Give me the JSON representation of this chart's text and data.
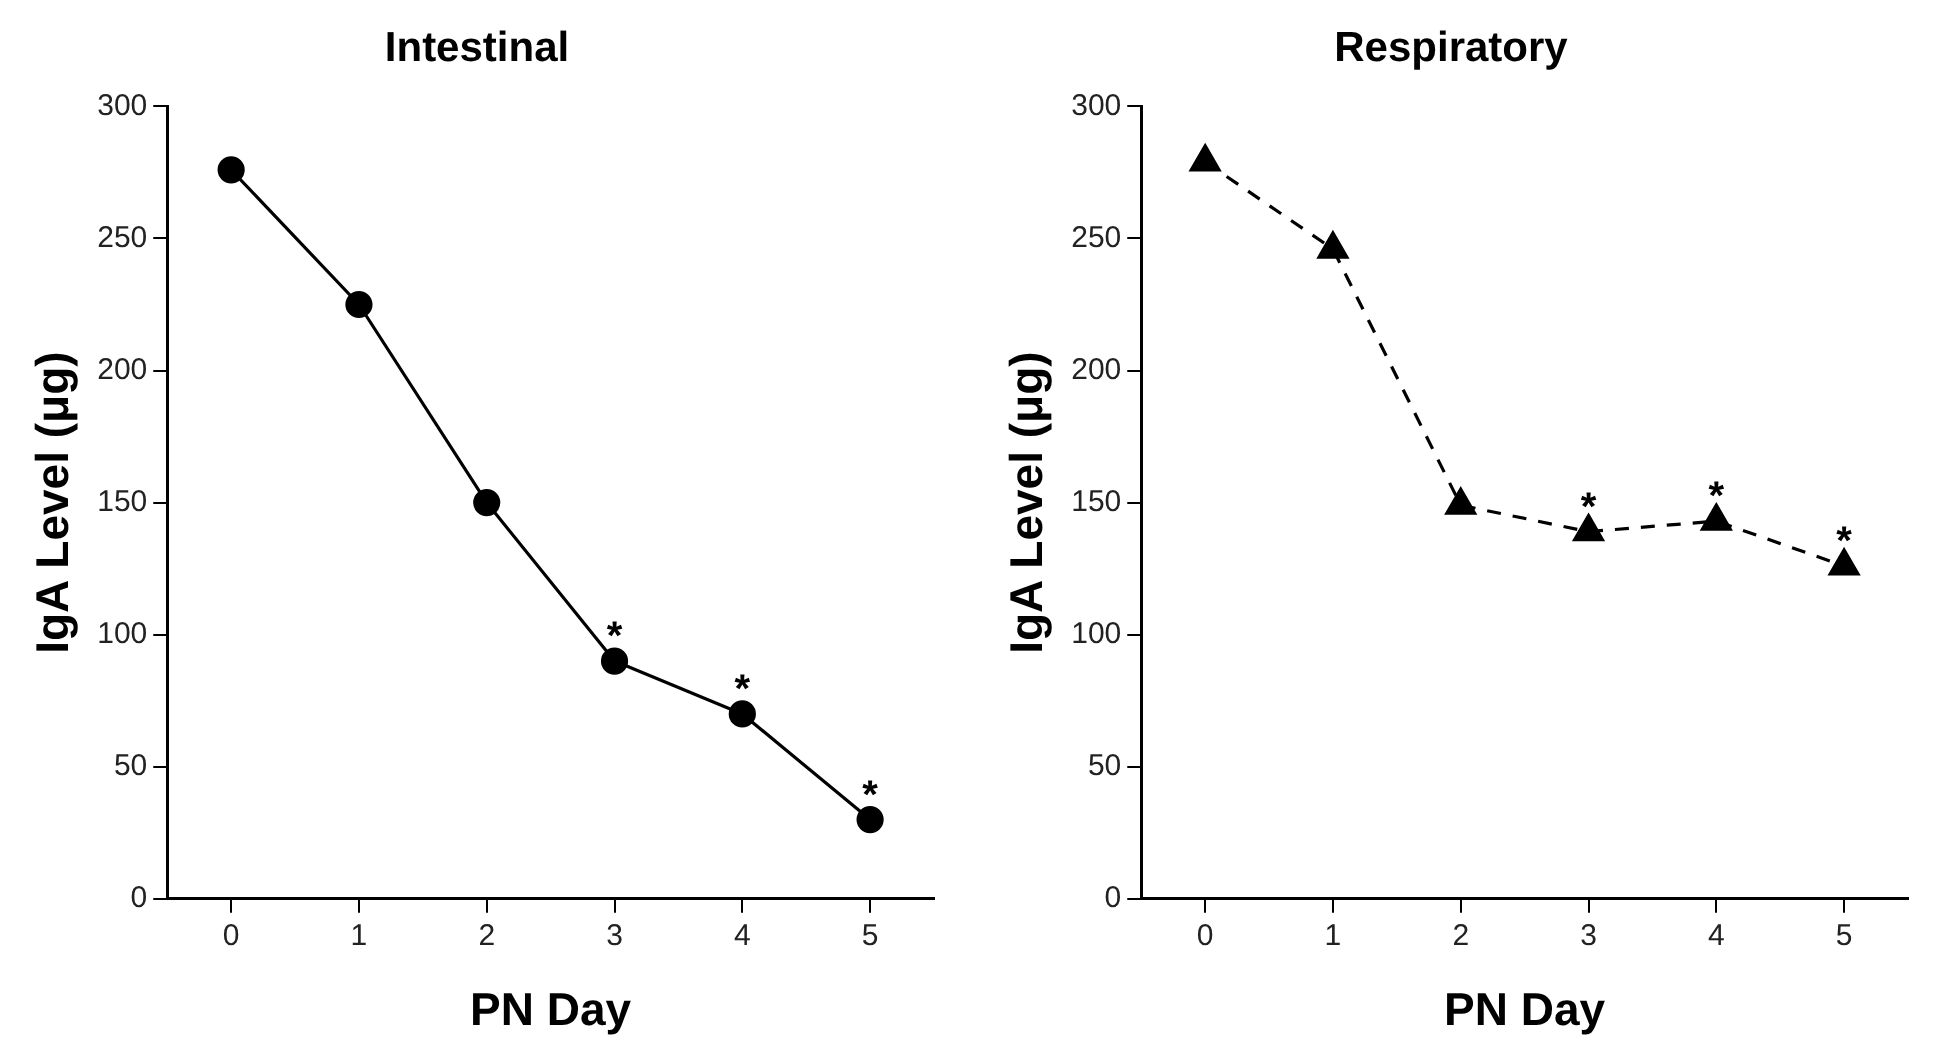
{
  "chart_data": [
    {
      "type": "line",
      "title": "Intestinal",
      "xlabel": "PN Day",
      "ylabel": "IgA Level (μg)",
      "categories": [
        "0",
        "1",
        "2",
        "3",
        "4",
        "5"
      ],
      "series": [
        {
          "color": "#000000",
          "values": [
            276,
            225,
            150,
            90,
            70,
            30
          ],
          "marker": "circle",
          "line_style": "solid"
        }
      ],
      "ylim": [
        0,
        300
      ],
      "yticks": [
        0,
        50,
        100,
        150,
        200,
        250,
        300
      ],
      "grid": false,
      "legend": false,
      "annotations": [
        {
          "text": "*",
          "x": "3",
          "y": 90
        },
        {
          "text": "*",
          "x": "4",
          "y": 70
        },
        {
          "text": "*",
          "x": "5",
          "y": 30
        }
      ]
    },
    {
      "type": "line",
      "title": "Respiratory",
      "xlabel": "PN Day",
      "ylabel": "IgA Level (μg)",
      "categories": [
        "0",
        "1",
        "2",
        "3",
        "4",
        "5"
      ],
      "series": [
        {
          "color": "#000000",
          "values": [
            279,
            246,
            149,
            139,
            143,
            126
          ],
          "marker": "triangle",
          "line_style": "dashed"
        }
      ],
      "ylim": [
        0,
        300
      ],
      "yticks": [
        0,
        50,
        100,
        150,
        200,
        250,
        300
      ],
      "grid": false,
      "legend": false,
      "annotations": [
        {
          "text": "*",
          "x": "3",
          "y": 139
        },
        {
          "text": "*",
          "x": "4",
          "y": 143
        },
        {
          "text": "*",
          "x": "5",
          "y": 126
        }
      ]
    }
  ]
}
